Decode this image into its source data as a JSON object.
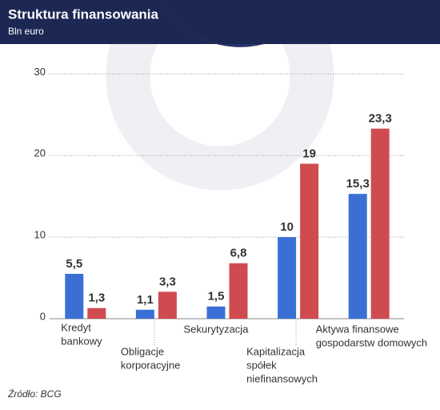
{
  "chart_data": {
    "type": "bar",
    "title": "Struktura finansowania",
    "subtitle": "Bln euro",
    "source": "Źródło: BCG",
    "categories": [
      [
        "Kredyt",
        "bankowy"
      ],
      [
        "Obligacje",
        "korporacyjne"
      ],
      [
        "Sekurytyzacja"
      ],
      [
        "Kapitalizacja",
        "spółek",
        "niefinansowych"
      ],
      [
        "Aktywa finansowe",
        "gospodarstw domowych"
      ]
    ],
    "series": [
      {
        "color": "#3a70d6",
        "values": [
          5.5,
          1.1,
          1.5,
          10,
          15.3
        ],
        "value_labels": [
          "5,5",
          "1,1",
          "1,5",
          "10",
          "15,3"
        ]
      },
      {
        "color": "#d04b50",
        "values": [
          1.3,
          3.3,
          6.8,
          19,
          23.3
        ],
        "value_labels": [
          "1,3",
          "3,3",
          "6,8",
          "19",
          "23,3"
        ]
      }
    ],
    "ylim": [
      0,
      32
    ],
    "yticks": [
      0,
      10,
      20,
      30
    ],
    "grid": true
  }
}
